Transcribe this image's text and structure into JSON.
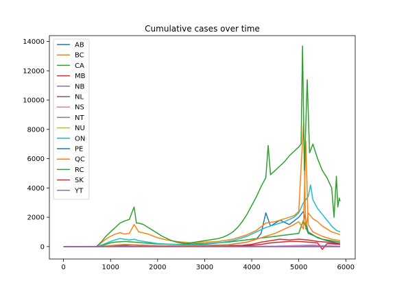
{
  "chart_data": {
    "type": "line",
    "title": "Cumulative cases over time",
    "xlabel": "",
    "ylabel": "",
    "xlim": [
      -300,
      6200
    ],
    "ylim": [
      -850,
      14400
    ],
    "xticks": [
      0,
      1000,
      2000,
      3000,
      4000,
      5000,
      6000
    ],
    "yticks": [
      0,
      2000,
      4000,
      6000,
      8000,
      10000,
      12000,
      14000
    ],
    "grid": false,
    "legend_position": "top-left",
    "series": [
      {
        "name": "AB",
        "color": "#1f77b4",
        "points": [
          [
            0,
            0
          ],
          [
            700,
            0
          ],
          [
            900,
            30
          ],
          [
            1100,
            60
          ],
          [
            1300,
            90
          ],
          [
            1500,
            120
          ],
          [
            1700,
            90
          ],
          [
            2000,
            60
          ],
          [
            2400,
            40
          ],
          [
            3000,
            80
          ],
          [
            3500,
            120
          ],
          [
            3900,
            300
          ],
          [
            4100,
            500
          ],
          [
            4200,
            900
          ],
          [
            4300,
            2300
          ],
          [
            4400,
            1400
          ],
          [
            4600,
            1800
          ],
          [
            4800,
            1500
          ],
          [
            5000,
            2000
          ],
          [
            5100,
            2400
          ],
          [
            5200,
            1000
          ],
          [
            5400,
            600
          ],
          [
            5600,
            400
          ],
          [
            5800,
            250
          ],
          [
            5880,
            200
          ]
        ]
      },
      {
        "name": "BC",
        "color": "#ff7f0e",
        "points": [
          [
            0,
            0
          ],
          [
            700,
            0
          ],
          [
            800,
            250
          ],
          [
            900,
            500
          ],
          [
            1000,
            700
          ],
          [
            1100,
            850
          ],
          [
            1200,
            950
          ],
          [
            1300,
            850
          ],
          [
            1400,
            900
          ],
          [
            1500,
            1500
          ],
          [
            1600,
            1000
          ],
          [
            1800,
            850
          ],
          [
            2000,
            600
          ],
          [
            2200,
            450
          ],
          [
            2400,
            350
          ],
          [
            2700,
            250
          ],
          [
            3000,
            300
          ],
          [
            3300,
            350
          ],
          [
            3600,
            500
          ],
          [
            3900,
            800
          ],
          [
            4100,
            1100
          ],
          [
            4300,
            1600
          ],
          [
            4500,
            1700
          ],
          [
            4700,
            1900
          ],
          [
            4900,
            2100
          ],
          [
            5000,
            2400
          ],
          [
            5100,
            8400
          ],
          [
            5150,
            1200
          ],
          [
            5200,
            2300
          ],
          [
            5300,
            1900
          ],
          [
            5400,
            1700
          ],
          [
            5500,
            1400
          ],
          [
            5600,
            1200
          ],
          [
            5700,
            1000
          ],
          [
            5800,
            900
          ],
          [
            5880,
            800
          ]
        ]
      },
      {
        "name": "CA",
        "color": "#2ca02c",
        "points": [
          [
            0,
            0
          ],
          [
            700,
            0
          ],
          [
            850,
            100
          ],
          [
            1000,
            250
          ],
          [
            1100,
            300
          ],
          [
            1300,
            350
          ],
          [
            1500,
            300
          ],
          [
            1700,
            250
          ],
          [
            2000,
            180
          ],
          [
            2400,
            150
          ],
          [
            3000,
            200
          ],
          [
            3500,
            300
          ],
          [
            4000,
            500
          ],
          [
            4500,
            700
          ],
          [
            5000,
            900
          ],
          [
            5100,
            1800
          ],
          [
            5200,
            900
          ],
          [
            5500,
            500
          ],
          [
            5880,
            300
          ]
        ]
      },
      {
        "name": "MB",
        "color": "#d62728",
        "points": [
          [
            0,
            0
          ],
          [
            800,
            0
          ],
          [
            1000,
            10
          ],
          [
            1500,
            20
          ],
          [
            2000,
            10
          ],
          [
            3000,
            20
          ],
          [
            3800,
            80
          ],
          [
            4000,
            150
          ],
          [
            4200,
            300
          ],
          [
            4400,
            400
          ],
          [
            4600,
            500
          ],
          [
            4800,
            450
          ],
          [
            5000,
            500
          ],
          [
            5200,
            450
          ],
          [
            5400,
            350
          ],
          [
            5600,
            300
          ],
          [
            5880,
            150
          ]
        ]
      },
      {
        "name": "NB",
        "color": "#9467bd",
        "points": [
          [
            0,
            0
          ],
          [
            1000,
            0
          ],
          [
            3000,
            0
          ],
          [
            4000,
            10
          ],
          [
            4500,
            20
          ],
          [
            5000,
            30
          ],
          [
            5500,
            20
          ],
          [
            5880,
            10
          ]
        ]
      },
      {
        "name": "NL",
        "color": "#8c564b",
        "points": [
          [
            0,
            0
          ],
          [
            1000,
            2
          ],
          [
            3000,
            2
          ],
          [
            4000,
            5
          ],
          [
            5000,
            10
          ],
          [
            5500,
            30
          ],
          [
            5880,
            20
          ]
        ]
      },
      {
        "name": "NS",
        "color": "#e377c2",
        "points": [
          [
            0,
            0
          ],
          [
            1000,
            10
          ],
          [
            1500,
            20
          ],
          [
            2000,
            5
          ],
          [
            3000,
            5
          ],
          [
            4000,
            10
          ],
          [
            4500,
            30
          ],
          [
            5000,
            80
          ],
          [
            5300,
            100
          ],
          [
            5600,
            50
          ],
          [
            5880,
            30
          ]
        ]
      },
      {
        "name": "NT",
        "color": "#7f7f7f",
        "points": [
          [
            0,
            0
          ],
          [
            2000,
            0
          ],
          [
            4000,
            0
          ],
          [
            5000,
            0
          ],
          [
            5880,
            0
          ]
        ]
      },
      {
        "name": "NU",
        "color": "#bcbd22",
        "points": [
          [
            0,
            0
          ],
          [
            2000,
            0
          ],
          [
            4000,
            0
          ],
          [
            5000,
            0
          ],
          [
            5880,
            0
          ]
        ]
      },
      {
        "name": "ON",
        "color": "#17becf",
        "points": [
          [
            0,
            0
          ],
          [
            700,
            0
          ],
          [
            850,
            150
          ],
          [
            1000,
            350
          ],
          [
            1100,
            450
          ],
          [
            1200,
            550
          ],
          [
            1300,
            500
          ],
          [
            1400,
            450
          ],
          [
            1500,
            500
          ],
          [
            1600,
            400
          ],
          [
            1800,
            300
          ],
          [
            2000,
            200
          ],
          [
            2300,
            150
          ],
          [
            2600,
            120
          ],
          [
            3000,
            150
          ],
          [
            3300,
            250
          ],
          [
            3600,
            400
          ],
          [
            3900,
            700
          ],
          [
            4100,
            1000
          ],
          [
            4300,
            1300
          ],
          [
            4500,
            1500
          ],
          [
            4700,
            1700
          ],
          [
            4900,
            2000
          ],
          [
            5000,
            2300
          ],
          [
            5100,
            3000
          ],
          [
            5200,
            3400
          ],
          [
            5250,
            4200
          ],
          [
            5300,
            3200
          ],
          [
            5400,
            2600
          ],
          [
            5500,
            2200
          ],
          [
            5600,
            1800
          ],
          [
            5700,
            1400
          ],
          [
            5800,
            1100
          ],
          [
            5880,
            1000
          ]
        ]
      },
      {
        "name": "PE",
        "color": "#1f77b4",
        "points": [
          [
            0,
            0
          ],
          [
            2000,
            0
          ],
          [
            4000,
            0
          ],
          [
            5000,
            0
          ],
          [
            5880,
            0
          ]
        ]
      },
      {
        "name": "QC",
        "color": "#ff7f0e",
        "points": [
          [
            0,
            0
          ],
          [
            700,
            0
          ],
          [
            900,
            50
          ],
          [
            1100,
            100
          ],
          [
            1300,
            150
          ],
          [
            1500,
            120
          ],
          [
            1700,
            80
          ],
          [
            2000,
            50
          ],
          [
            3000,
            60
          ],
          [
            3500,
            100
          ],
          [
            3900,
            300
          ],
          [
            4100,
            500
          ],
          [
            4300,
            700
          ],
          [
            4500,
            900
          ],
          [
            4700,
            1200
          ],
          [
            4900,
            1500
          ],
          [
            5000,
            1700
          ],
          [
            5100,
            1200
          ],
          [
            5150,
            7200
          ],
          [
            5200,
            1500
          ],
          [
            5300,
            1000
          ],
          [
            5500,
            700
          ],
          [
            5700,
            500
          ],
          [
            5880,
            400
          ]
        ]
      },
      {
        "name": "RC",
        "color": "#2ca02c",
        "points": [
          [
            0,
            0
          ],
          [
            700,
            0
          ],
          [
            800,
            300
          ],
          [
            900,
            700
          ],
          [
            1000,
            1000
          ],
          [
            1100,
            1300
          ],
          [
            1200,
            1600
          ],
          [
            1300,
            1750
          ],
          [
            1400,
            1850
          ],
          [
            1500,
            2700
          ],
          [
            1550,
            1600
          ],
          [
            1600,
            1600
          ],
          [
            1700,
            1500
          ],
          [
            1800,
            1300
          ],
          [
            1900,
            1100
          ],
          [
            2000,
            900
          ],
          [
            2100,
            700
          ],
          [
            2200,
            550
          ],
          [
            2300,
            400
          ],
          [
            2400,
            300
          ],
          [
            2500,
            250
          ],
          [
            2600,
            200
          ],
          [
            2700,
            250
          ],
          [
            2800,
            300
          ],
          [
            2900,
            350
          ],
          [
            3000,
            400
          ],
          [
            3100,
            450
          ],
          [
            3200,
            500
          ],
          [
            3300,
            550
          ],
          [
            3400,
            650
          ],
          [
            3500,
            800
          ],
          [
            3600,
            1000
          ],
          [
            3700,
            1300
          ],
          [
            3800,
            1700
          ],
          [
            3900,
            2200
          ],
          [
            4000,
            2800
          ],
          [
            4100,
            3400
          ],
          [
            4200,
            4100
          ],
          [
            4300,
            4700
          ],
          [
            4350,
            6900
          ],
          [
            4400,
            4900
          ],
          [
            4500,
            5200
          ],
          [
            4600,
            5500
          ],
          [
            4700,
            5800
          ],
          [
            4800,
            6200
          ],
          [
            4900,
            6500
          ],
          [
            5000,
            6800
          ],
          [
            5050,
            7000
          ],
          [
            5080,
            13700
          ],
          [
            5120,
            5200
          ],
          [
            5180,
            11400
          ],
          [
            5230,
            6400
          ],
          [
            5300,
            7000
          ],
          [
            5400,
            6000
          ],
          [
            5500,
            5200
          ],
          [
            5600,
            4700
          ],
          [
            5700,
            4000
          ],
          [
            5750,
            2000
          ],
          [
            5800,
            4800
          ],
          [
            5830,
            2700
          ],
          [
            5860,
            3300
          ],
          [
            5880,
            3100
          ]
        ]
      },
      {
        "name": "SK",
        "color": "#d62728",
        "points": [
          [
            0,
            0
          ],
          [
            800,
            0
          ],
          [
            1000,
            10
          ],
          [
            1500,
            20
          ],
          [
            2000,
            10
          ],
          [
            3000,
            10
          ],
          [
            3800,
            40
          ],
          [
            4000,
            80
          ],
          [
            4200,
            150
          ],
          [
            4400,
            250
          ],
          [
            4600,
            300
          ],
          [
            4800,
            350
          ],
          [
            5000,
            350
          ],
          [
            5200,
            300
          ],
          [
            5400,
            250
          ],
          [
            5500,
            -200
          ],
          [
            5600,
            200
          ],
          [
            5880,
            150
          ]
        ]
      },
      {
        "name": "YT",
        "color": "#9467bd",
        "points": [
          [
            0,
            0
          ],
          [
            2000,
            0
          ],
          [
            4000,
            0
          ],
          [
            5000,
            0
          ],
          [
            5880,
            0
          ]
        ]
      }
    ]
  }
}
